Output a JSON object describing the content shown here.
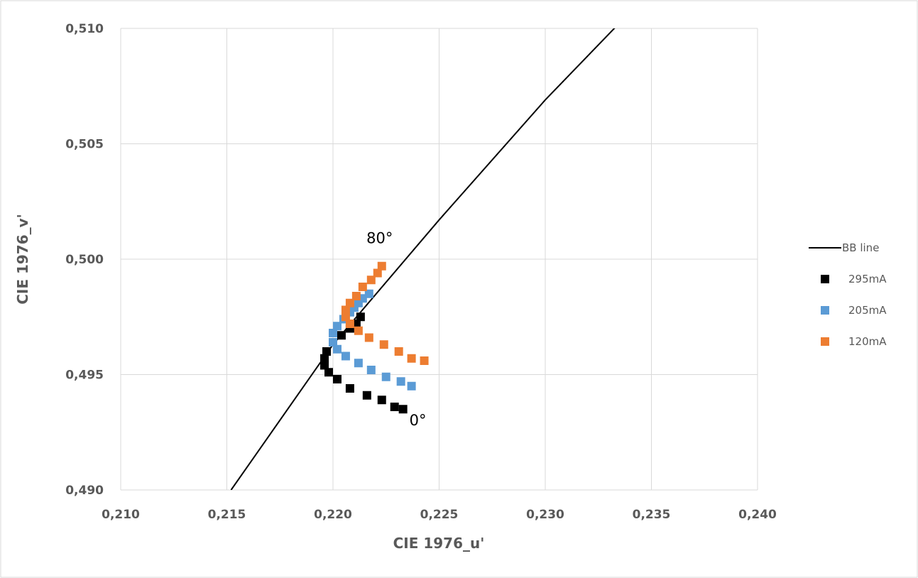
{
  "chart_data": {
    "type": "scatter",
    "title": "",
    "xlabel": "CIE 1976_u'",
    "ylabel": "CIE 1976_v'",
    "xlim": [
      0.21,
      0.24
    ],
    "ylim": [
      0.49,
      0.51
    ],
    "xticks": [
      0.21,
      0.215,
      0.22,
      0.225,
      0.23,
      0.235,
      0.24
    ],
    "yticks": [
      0.49,
      0.495,
      0.5,
      0.505,
      0.51
    ],
    "xtick_labels": [
      "0,210",
      "0,215",
      "0,220",
      "0,225",
      "0,230",
      "0,235",
      "0,240"
    ],
    "ytick_labels": [
      "0,490",
      "0,495",
      "0,500",
      "0,505",
      "0,510"
    ],
    "grid": true,
    "legend_position": "right",
    "line_series": {
      "name": "BB line",
      "color": "#000000",
      "x": [
        0.2152,
        0.22,
        0.225,
        0.23,
        0.2343
      ],
      "y": [
        0.49,
        0.4963,
        0.5017,
        0.5069,
        0.511
      ]
    },
    "series": [
      {
        "name": "295mA",
        "color": "#000000",
        "marker": "square",
        "x": [
          0.2233,
          0.2229,
          0.2223,
          0.2216,
          0.2208,
          0.2202,
          0.2198,
          0.2196,
          0.2196,
          0.2197,
          0.2204,
          0.2208,
          0.2211,
          0.2213
        ],
        "y": [
          0.4935,
          0.4936,
          0.4939,
          0.4941,
          0.4944,
          0.4948,
          0.4951,
          0.4954,
          0.4957,
          0.496,
          0.4967,
          0.497,
          0.4972,
          0.4975
        ]
      },
      {
        "name": "205mA",
        "color": "#5B9BD5",
        "marker": "square",
        "x": [
          0.2237,
          0.2232,
          0.2225,
          0.2218,
          0.2212,
          0.2206,
          0.2202,
          0.22,
          0.22,
          0.2202,
          0.2205,
          0.2208,
          0.221,
          0.2212,
          0.2214,
          0.2217
        ],
        "y": [
          0.4945,
          0.4947,
          0.4949,
          0.4952,
          0.4955,
          0.4958,
          0.4961,
          0.4964,
          0.4968,
          0.4971,
          0.4974,
          0.4977,
          0.4979,
          0.4981,
          0.4983,
          0.4985
        ]
      },
      {
        "name": "120mA",
        "color": "#ED7D31",
        "marker": "square",
        "x": [
          0.2243,
          0.2237,
          0.2231,
          0.2224,
          0.2217,
          0.2212,
          0.2208,
          0.2206,
          0.2206,
          0.2208,
          0.2211,
          0.2214,
          0.2218,
          0.2221,
          0.2223
        ],
        "y": [
          0.4956,
          0.4957,
          0.496,
          0.4963,
          0.4966,
          0.4969,
          0.4972,
          0.4975,
          0.4978,
          0.4981,
          0.4984,
          0.4988,
          0.4991,
          0.4994,
          0.4997
        ]
      }
    ],
    "annotations": [
      {
        "text": "80°",
        "x": 0.2222,
        "y": 0.5007
      },
      {
        "text": "0°",
        "x": 0.224,
        "y": 0.4928
      }
    ]
  }
}
